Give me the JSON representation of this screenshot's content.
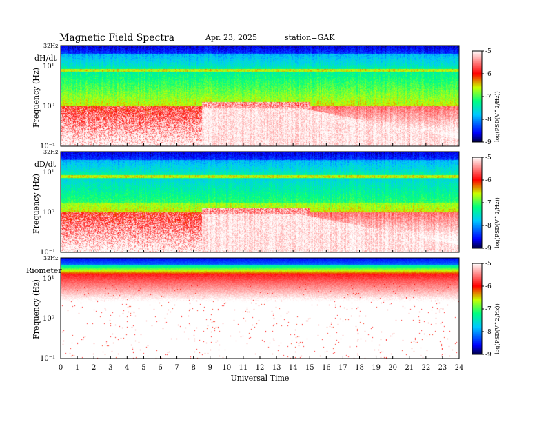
{
  "header": {
    "title": "Magnetic  Field  Spectra",
    "date": "Apr. 23, 2025",
    "station": "station=GAK"
  },
  "chart_data": {
    "type": "heatmap",
    "xlabel": "Universal Time",
    "x_ticks": [
      "0",
      "1",
      "2",
      "3",
      "4",
      "5",
      "6",
      "7",
      "8",
      "9",
      "10",
      "11",
      "12",
      "13",
      "14",
      "15",
      "16",
      "17",
      "18",
      "19",
      "20",
      "21",
      "22",
      "23",
      "24"
    ],
    "xlim": [
      0,
      24
    ],
    "colorbar": {
      "label": "log(PSD(V^2/Hz))",
      "ticks": [
        "-5",
        "-6",
        "-7",
        "-8",
        "-9"
      ],
      "range": [
        -9,
        -5
      ],
      "colors": [
        "#000060",
        "#0000ff",
        "#00c8ff",
        "#00ff80",
        "#c8ff00",
        "#ff0000",
        "#ffffff"
      ]
    },
    "panels": [
      {
        "name": "dH/dt",
        "ylabel": "Frequency  (Hz)",
        "ytop": "32Hz",
        "y_ticks": [
          "10¹",
          "10⁰",
          "10⁻¹"
        ],
        "yscale": "log",
        "ylim": [
          0.1,
          32
        ],
        "event_start_hour": 8.5
      },
      {
        "name": "dD/dt",
        "ylabel": "Frequency  (Hz)",
        "ytop": "32Hz",
        "y_ticks": [
          "10¹",
          "10⁰",
          "10⁻¹"
        ],
        "yscale": "log",
        "ylim": [
          0.1,
          32
        ],
        "event_start_hour": 8.5
      },
      {
        "name": "Riometer",
        "ylabel": "Frequency  (Hz)",
        "ytop": "32Hz",
        "y_ticks": [
          "10¹",
          "10⁰",
          "10⁻¹"
        ],
        "yscale": "log",
        "ylim": [
          0.1,
          32
        ]
      }
    ]
  }
}
